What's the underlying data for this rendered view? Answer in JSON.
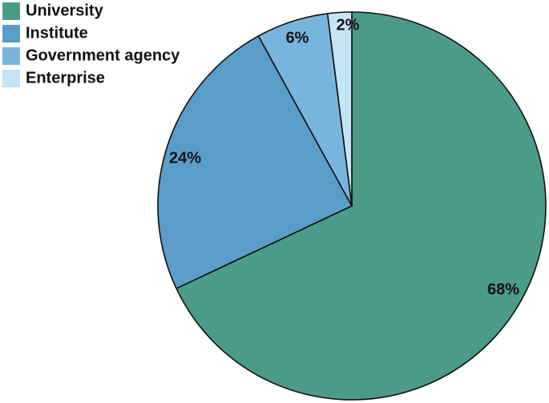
{
  "chart_data": {
    "type": "pie",
    "title": "",
    "categories": [
      "University",
      "Institute",
      "Government agency",
      "Enterprise"
    ],
    "values": [
      68,
      24,
      6,
      2
    ],
    "labels": [
      "68%",
      "24%",
      "6%",
      "2%"
    ],
    "colors": [
      "#4a9c88",
      "#5a9dc8",
      "#78b5dc",
      "#c5e4f6"
    ],
    "start_angle": "12 o'clock",
    "direction": "clockwise",
    "legend_position": "top-left"
  }
}
